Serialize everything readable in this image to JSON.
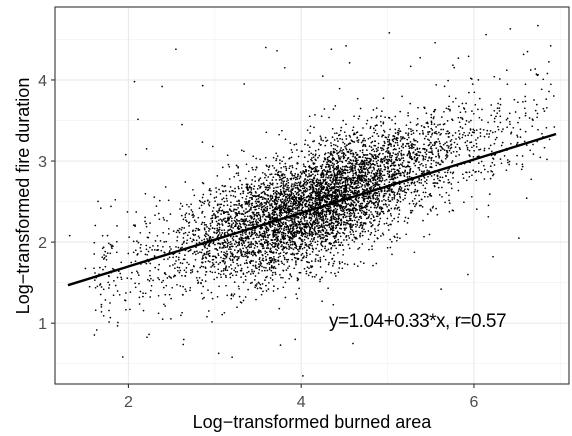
{
  "chart_data": {
    "type": "scatter",
    "xlabel": "Log−transformed burned area",
    "ylabel": "Log−transformed fire duration",
    "xlim": [
      1.15,
      7.1
    ],
    "ylim": [
      0.25,
      4.9
    ],
    "x_ticks": [
      2,
      4,
      6
    ],
    "y_ticks": [
      1,
      2,
      3,
      4
    ],
    "x_tick_labels": [
      "2",
      "4",
      "6"
    ],
    "y_tick_labels": [
      "1",
      "2",
      "3",
      "4"
    ],
    "grid": true,
    "legend": "none",
    "fit_line": {
      "intercept": 1.04,
      "slope": 0.33,
      "x_range": [
        1.3,
        6.95
      ]
    },
    "annotation": "y=1.04+0.33*x, r=0.57",
    "approx_point_count": 6000,
    "point_cloud": {
      "center": [
        4.2,
        2.42
      ],
      "note": "dense cloud of individual fire observations concentrated between x=3 and x=5.5"
    },
    "outliers": [
      {
        "x": 1.32,
        "y": 2.08
      },
      {
        "x": 1.55,
        "y": 1.45
      },
      {
        "x": 1.68,
        "y": 2.42
      },
      {
        "x": 1.82,
        "y": 1.95
      },
      {
        "x": 1.97,
        "y": 3.08
      },
      {
        "x": 2.07,
        "y": 3.98
      },
      {
        "x": 2.21,
        "y": 3.15
      },
      {
        "x": 2.39,
        "y": 3.92
      },
      {
        "x": 2.55,
        "y": 4.38
      },
      {
        "x": 2.62,
        "y": 3.45
      },
      {
        "x": 2.86,
        "y": 3.93
      },
      {
        "x": 2.93,
        "y": 1.15
      },
      {
        "x": 3.2,
        "y": 0.58
      },
      {
        "x": 3.34,
        "y": 3.95
      },
      {
        "x": 3.48,
        "y": 1.46
      },
      {
        "x": 3.59,
        "y": 4.4
      },
      {
        "x": 3.72,
        "y": 4.36
      },
      {
        "x": 3.76,
        "y": 0.73
      },
      {
        "x": 3.81,
        "y": 4.15
      },
      {
        "x": 3.93,
        "y": 0.8
      },
      {
        "x": 4.02,
        "y": 0.35
      },
      {
        "x": 4.35,
        "y": 4.38
      },
      {
        "x": 4.52,
        "y": 4.42
      },
      {
        "x": 4.56,
        "y": 4.21
      },
      {
        "x": 4.6,
        "y": 0.75
      },
      {
        "x": 5.02,
        "y": 4.58
      },
      {
        "x": 5.26,
        "y": 1.04
      },
      {
        "x": 5.55,
        "y": 4.46
      },
      {
        "x": 5.62,
        "y": 1.42
      },
      {
        "x": 5.82,
        "y": 4.27
      },
      {
        "x": 5.93,
        "y": 1.6
      },
      {
        "x": 6.14,
        "y": 4.56
      },
      {
        "x": 6.22,
        "y": 1.82
      },
      {
        "x": 6.38,
        "y": 4.12
      },
      {
        "x": 6.42,
        "y": 4.63
      },
      {
        "x": 6.52,
        "y": 2.05
      },
      {
        "x": 6.62,
        "y": 4.35
      },
      {
        "x": 6.74,
        "y": 4.67
      },
      {
        "x": 6.85,
        "y": 4.08
      },
      {
        "x": 6.93,
        "y": 3.42
      }
    ]
  }
}
